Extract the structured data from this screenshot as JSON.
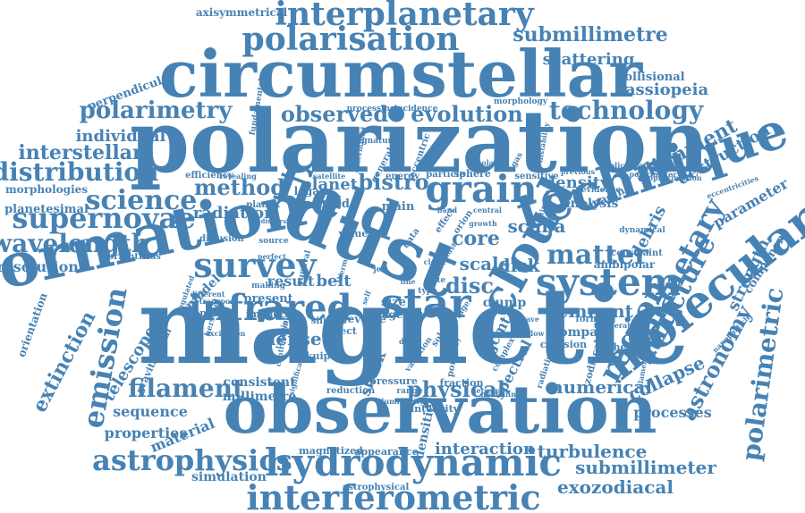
{
  "color": "#4682b4",
  "words": [
    {
      "t": "polarization"
    },
    {
      "t": "magnetic"
    },
    {
      "t": "observation"
    },
    {
      "t": "circumstellar"
    },
    {
      "t": "formation"
    },
    {
      "t": "dust"
    },
    {
      "t": "field"
    },
    {
      "t": "technique"
    },
    {
      "t": "cloud"
    },
    {
      "t": "molecular"
    },
    {
      "t": "interplanetary"
    },
    {
      "t": "polarisation"
    },
    {
      "t": "hydrodynamic"
    },
    {
      "t": "interferometric"
    },
    {
      "t": "infrared"
    },
    {
      "t": "system"
    },
    {
      "t": "star"
    },
    {
      "t": "grain"
    },
    {
      "t": "survey"
    },
    {
      "t": "emission"
    },
    {
      "t": "astrophysics"
    },
    {
      "t": "supernovae"
    },
    {
      "t": "technology"
    },
    {
      "t": "region"
    },
    {
      "t": "filament"
    },
    {
      "t": "distribution"
    },
    {
      "t": "polarimetry"
    },
    {
      "t": "planetary"
    },
    {
      "t": "submillimetre"
    },
    {
      "t": "science"
    },
    {
      "t": "wavelength"
    },
    {
      "t": "polarimetric"
    },
    {
      "t": "structure"
    },
    {
      "t": "matter"
    },
    {
      "t": "observed"
    },
    {
      "t": "evolution"
    },
    {
      "t": "method"
    },
    {
      "t": "disc"
    },
    {
      "t": "physical"
    },
    {
      "t": "turbulence"
    },
    {
      "t": "submillimeter"
    },
    {
      "t": "interstellar"
    },
    {
      "t": "astronomy"
    },
    {
      "t": "extinction"
    },
    {
      "t": "numerical"
    },
    {
      "t": "collapse"
    },
    {
      "t": "exozodiacal"
    },
    {
      "t": "interaction"
    },
    {
      "t": "remnant"
    },
    {
      "t": "alignment"
    },
    {
      "t": "resolution"
    },
    {
      "t": "individual"
    },
    {
      "t": "scattering"
    },
    {
      "t": "cassiopeia"
    },
    {
      "t": "destruction"
    },
    {
      "t": "strength"
    },
    {
      "t": "telescope"
    },
    {
      "t": "sequence"
    },
    {
      "t": "properties"
    },
    {
      "t": "material"
    },
    {
      "t": "processes"
    },
    {
      "t": "collisional"
    },
    {
      "t": "debris"
    },
    {
      "t": "core"
    },
    {
      "t": "scale"
    },
    {
      "t": "disk"
    },
    {
      "t": "bistro"
    },
    {
      "t": "planet"
    },
    {
      "t": "radiation"
    },
    {
      "t": "density"
    },
    {
      "t": "shock"
    },
    {
      "t": "scuba"
    },
    {
      "t": "dense"
    },
    {
      "t": "belt"
    },
    {
      "t": "result"
    },
    {
      "t": "model"
    },
    {
      "t": "consistent"
    },
    {
      "t": "millimetre"
    },
    {
      "t": "simulation"
    },
    {
      "t": "spectral"
    },
    {
      "t": "jcmt"
    },
    {
      "t": "compact"
    },
    {
      "t": "parameter"
    },
    {
      "t": "component"
    },
    {
      "t": "morphologies"
    },
    {
      "t": "planetesimal"
    },
    {
      "t": "perpendicular"
    },
    {
      "t": "axisymmetrical"
    },
    {
      "t": "orientation"
    },
    {
      "t": "gravitational"
    },
    {
      "t": "magnetized"
    },
    {
      "t": "appearance"
    },
    {
      "t": "astrophysical"
    },
    {
      "t": "pressure"
    },
    {
      "t": "reduction"
    },
    {
      "t": "densities"
    },
    {
      "t": "clump"
    },
    {
      "t": "analysis"
    },
    {
      "t": "imaging"
    },
    {
      "t": "ambipolar"
    },
    {
      "t": "constraint"
    },
    {
      "t": "spherical"
    },
    {
      "t": "collision"
    },
    {
      "t": "zodiacal"
    },
    {
      "t": "intensity"
    },
    {
      "t": "fraction"
    },
    {
      "t": "silicate"
    },
    {
      "t": "object"
    },
    {
      "t": "reverse"
    },
    {
      "t": "image"
    },
    {
      "t": "angular"
    },
    {
      "t": "impact"
    },
    {
      "t": "present"
    },
    {
      "t": "kuiper"
    },
    {
      "t": "porosity"
    },
    {
      "t": "size"
    },
    {
      "t": "value"
    },
    {
      "t": "main"
    },
    {
      "t": "band"
    },
    {
      "t": "legacy"
    },
    {
      "t": "particle"
    },
    {
      "t": "sphere"
    },
    {
      "t": "energy"
    },
    {
      "t": "sensitive"
    },
    {
      "t": "forming"
    },
    {
      "t": "brightness"
    },
    {
      "t": "herschel"
    },
    {
      "t": "planck"
    },
    {
      "t": "diffusion"
    },
    {
      "t": "efficiency"
    },
    {
      "t": "processing"
    },
    {
      "t": "incidence"
    },
    {
      "t": "morphology"
    },
    {
      "t": "fundamental"
    },
    {
      "t": "different"
    },
    {
      "t": "transport"
    },
    {
      "t": "regulated"
    },
    {
      "t": "making"
    },
    {
      "t": "source"
    },
    {
      "t": "radiative"
    },
    {
      "t": "filamentary"
    },
    {
      "t": "nanoparticle"
    },
    {
      "t": "dynamical"
    },
    {
      "t": "evidence"
    },
    {
      "t": "eccentric"
    },
    {
      "t": "general"
    },
    {
      "t": "signature"
    },
    {
      "t": "bipolar"
    },
    {
      "t": "gas"
    },
    {
      "t": "rate"
    },
    {
      "t": "range"
    },
    {
      "t": "type"
    },
    {
      "t": "network"
    },
    {
      "t": "luminosity"
    },
    {
      "t": "variation"
    },
    {
      "t": "significant"
    },
    {
      "t": "orion"
    },
    {
      "t": "effect"
    },
    {
      "t": "data"
    },
    {
      "t": "ridge"
    },
    {
      "t": "survival"
    },
    {
      "t": "polarimeter"
    },
    {
      "t": "previous"
    },
    {
      "t": "eccentricities"
    },
    {
      "t": "application"
    },
    {
      "t": "approximation"
    },
    {
      "t": "temperature"
    },
    {
      "t": "contraction"
    },
    {
      "t": "excitation"
    },
    {
      "t": "satellite"
    },
    {
      "t": "determined"
    },
    {
      "t": "revealing"
    },
    {
      "t": "thermal"
    },
    {
      "t": "trapping"
    },
    {
      "t": "growth"
    },
    {
      "t": "central"
    },
    {
      "t": "complex"
    },
    {
      "t": "wave"
    },
    {
      "t": "outflow"
    },
    {
      "t": "modelling"
    },
    {
      "t": "instability"
    },
    {
      "t": "perfect"
    },
    {
      "t": "dispersion"
    },
    {
      "t": "estimate"
    },
    {
      "t": "self"
    },
    {
      "t": "solar"
    },
    {
      "t": "disc"
    },
    {
      "t": "jet"
    },
    {
      "t": "cloud"
    },
    {
      "t": "line"
    },
    {
      "t": "band"
    },
    {
      "t": "dust"
    }
  ]
}
